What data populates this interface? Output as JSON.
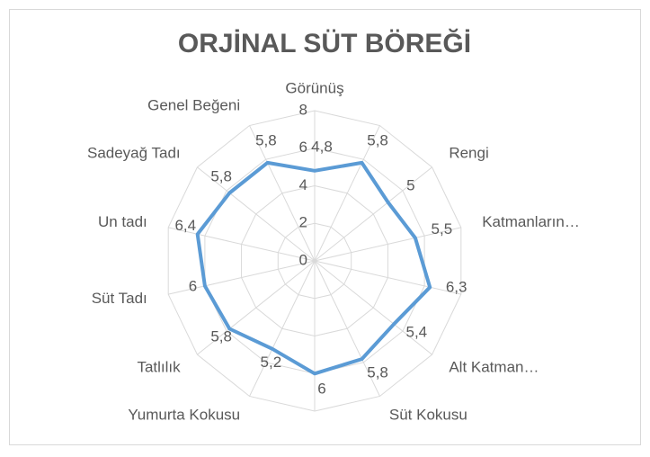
{
  "chart_data": {
    "type": "radar",
    "title": "ORJİNAL SÜT BÖREĞİ",
    "categories": [
      "Görünüş",
      null,
      "Rengi",
      "Katmanların…",
      null,
      "Alt Katman…",
      "Süt Kokusu",
      null,
      "Yumurta Kokusu",
      "Tatlılık",
      "Süt Tadı",
      "Un tadı",
      "Sadeyağ Tadı",
      "Genel Beğeni"
    ],
    "series": [
      {
        "name": "ORJİNAL SÜT BÖREĞİ",
        "color": "#5b9bd5",
        "values": [
          4.8,
          5.8,
          5,
          5.5,
          6.3,
          5.4,
          5.8,
          6,
          5.2,
          5.8,
          6,
          6.4,
          5.8,
          5.8
        ],
        "value_labels": [
          "4,8",
          "5,8",
          "5",
          "5,5",
          "6,3",
          "5,4",
          "5,8",
          "6",
          "5,2",
          "5,8",
          "6",
          "6,4",
          "5,8",
          "5,8"
        ]
      }
    ],
    "rlim": [
      0,
      8
    ],
    "rticks": [
      0,
      2,
      4,
      6,
      8
    ],
    "grid": true
  }
}
